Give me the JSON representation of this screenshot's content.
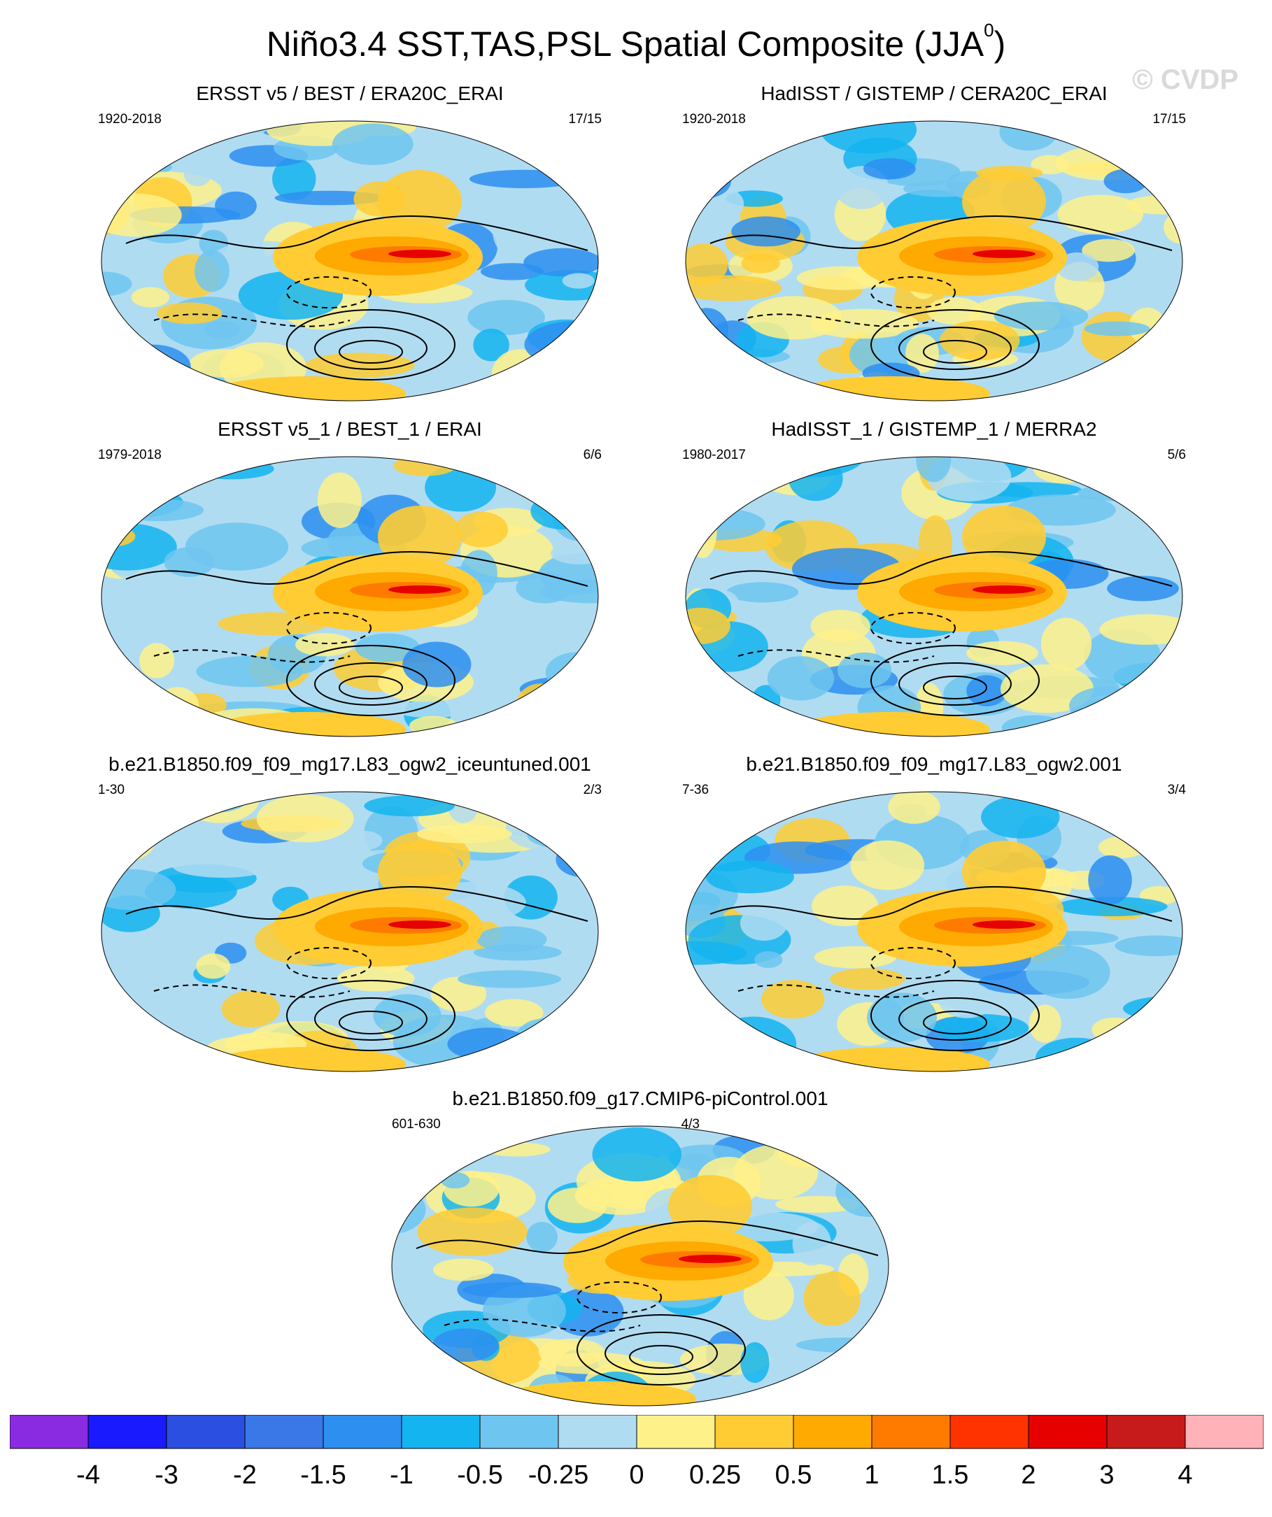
{
  "title_main": "Niño3.4 SST,TAS,PSL Spatial Composite (JJA",
  "title_sup": "0",
  "title_close": ")",
  "watermark": "© CVDP",
  "panels": [
    {
      "title": "ERSST v5 / BEST / ERA20C_ERAI",
      "period": "1920-2018",
      "count": "17/15"
    },
    {
      "title": "HadISST / GISTEMP / CERA20C_ERAI",
      "period": "1920-2018",
      "count": "17/15"
    },
    {
      "title": "ERSST v5_1 / BEST_1 / ERAI",
      "period": "1979-2018",
      "count": "6/6"
    },
    {
      "title": "HadISST_1 / GISTEMP_1 / MERRA2",
      "period": "1980-2017",
      "count": "5/6"
    },
    {
      "title": "b.e21.B1850.f09_f09_mg17.L83_ogw2_iceuntuned.001",
      "period": "1-30",
      "count": "2/3"
    },
    {
      "title": "b.e21.B1850.f09_f09_mg17.L83_ogw2.001",
      "period": "7-36",
      "count": "3/4"
    },
    {
      "title": "b.e21.B1850.f09_g17.CMIP6-piControl.001",
      "period": "601-630",
      "count": "4/3"
    }
  ],
  "colorbar": {
    "labels": [
      "-4",
      "-3",
      "-2",
      "-1.5",
      "-1",
      "-0.5",
      "-0.25",
      "0",
      "0.25",
      "0.5",
      "1",
      "1.5",
      "2",
      "3",
      "4"
    ],
    "colors": [
      "#8a2be2",
      "#1a1aff",
      "#2b4fe0",
      "#3a78e8",
      "#2d8ff0",
      "#14b4f0",
      "#6ec6f0",
      "#b0dcf2",
      "#fff18a",
      "#ffcc33",
      "#ffaa00",
      "#ff7b00",
      "#ff3300",
      "#e60000",
      "#c71a1a",
      "#ffb3b8"
    ]
  }
}
